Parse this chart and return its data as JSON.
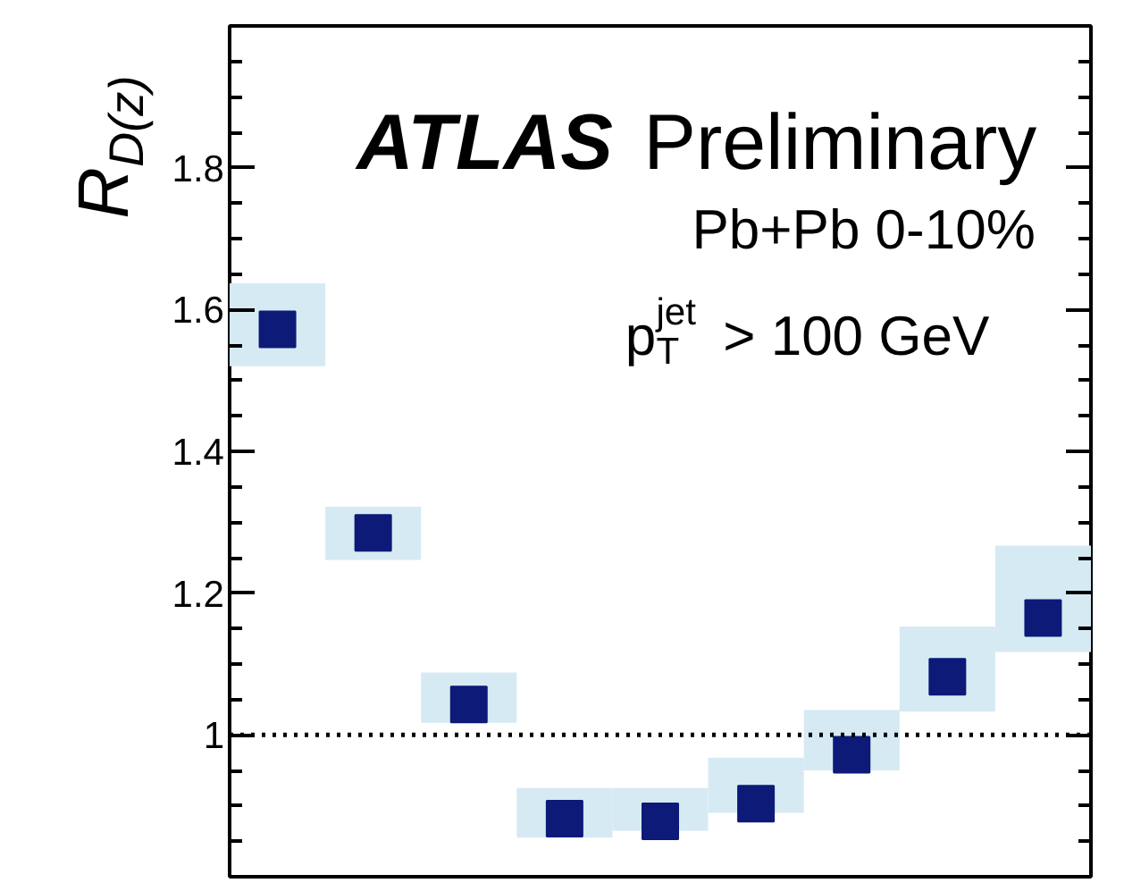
{
  "chart_data": {
    "type": "scatter",
    "ylabel": "R$_{D(z)}$",
    "categories": [
      null,
      null,
      null,
      null,
      null,
      null,
      null,
      null,
      null
    ],
    "series": [
      {
        "type": "bar",
        "color": "#d6eaf3",
        "base": [
          1.52,
          1.247,
          1.017,
          0.855,
          0.865,
          0.89,
          0.95,
          1.033,
          1.117
        ],
        "values": [
          0.117,
          0.075,
          0.071,
          0.07,
          0.06,
          0.078,
          0.085,
          0.12,
          0.15
        ]
      },
      {
        "color": "#0d1a78",
        "values": [
          1.572,
          1.285,
          1.043,
          0.882,
          0.878,
          0.903,
          0.972,
          1.082,
          1.165
        ],
        "errors": [
          null,
          null,
          null,
          null,
          null,
          null,
          null,
          null,
          0.02
        ]
      }
    ],
    "marker": "square",
    "ylim": [
      0.8,
      2.0
    ],
    "yticks": [
      1,
      1.2,
      1.4,
      1.6,
      1.8
    ],
    "tick_labels": "y",
    "ref_lines": [
      {
        "axis": "y",
        "value": 1,
        "line_style": "dotted",
        "color": "#000000"
      }
    ],
    "annotations": [
      "ATLAS Preliminary",
      "Pb+Pb 0-10%",
      "p$_{T}$$^{jet}$ > 100 GeV"
    ]
  }
}
